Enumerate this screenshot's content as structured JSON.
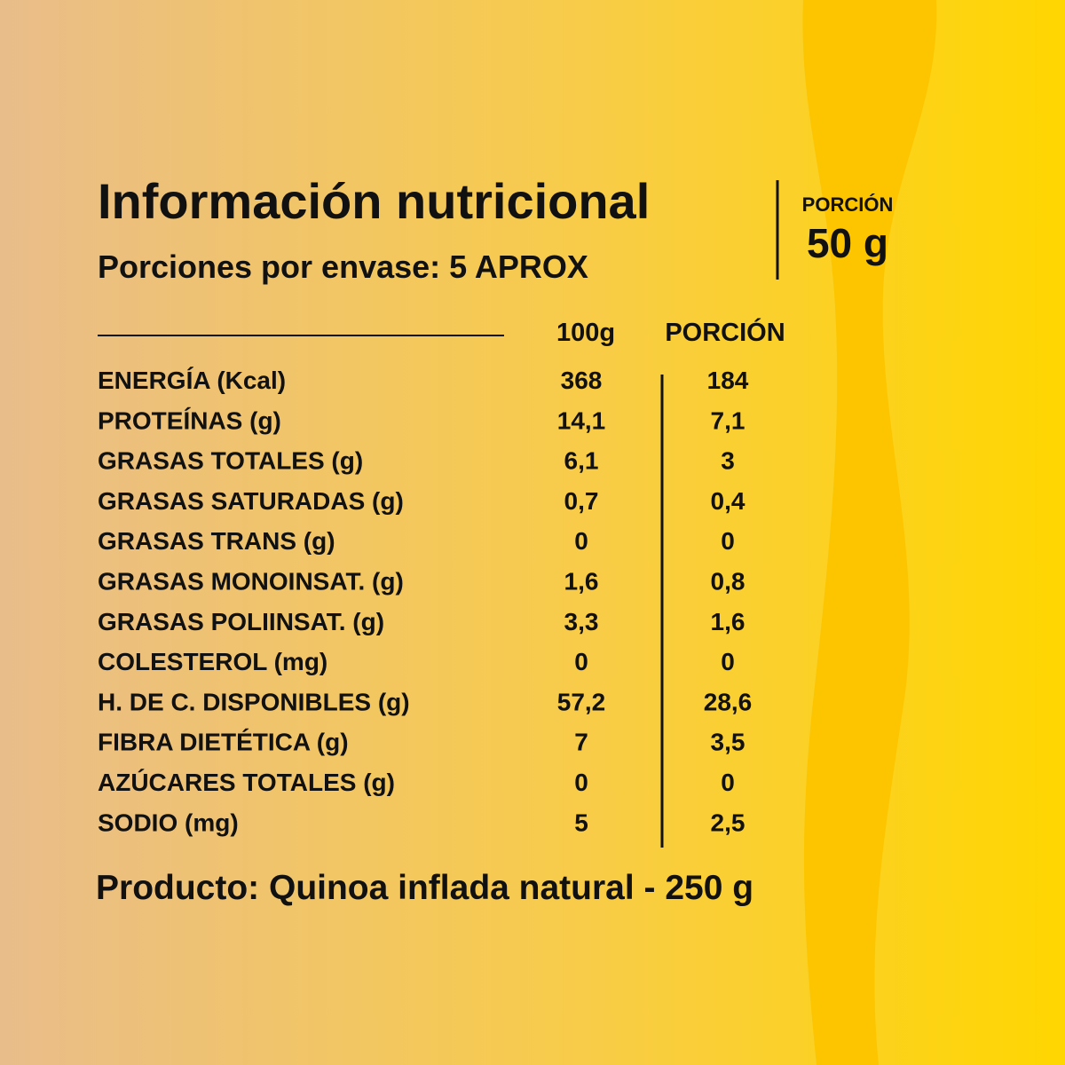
{
  "header": {
    "title": "Información nutricional",
    "subtitle": "Porciones por envase: 5 APROX"
  },
  "portion": {
    "label": "PORCIÓN",
    "value": "50 g"
  },
  "table": {
    "columns": [
      "100g",
      "PORCIÓN"
    ],
    "rows": [
      [
        "ENERGÍA (Kcal)",
        "368",
        "184"
      ],
      [
        "PROTEÍNAS (g)",
        "14,1",
        "7,1"
      ],
      [
        "GRASAS TOTALES (g)",
        "6,1",
        "3"
      ],
      [
        "GRASAS SATURADAS (g)",
        "0,7",
        "0,4"
      ],
      [
        "GRASAS TRANS (g)",
        "0",
        "0"
      ],
      [
        "GRASAS MONOINSAT. (g)",
        "1,6",
        "0,8"
      ],
      [
        "GRASAS POLIINSAT. (g)",
        "3,3",
        "1,6"
      ],
      [
        "COLESTEROL (mg)",
        "0",
        "0"
      ],
      [
        "H. DE C. DISPONIBLES (g)",
        "57,2",
        "28,6"
      ],
      [
        "FIBRA DIETÉTICA (g)",
        "7",
        "3,5"
      ],
      [
        "AZÚCARES TOTALES (g)",
        "0",
        "0"
      ],
      [
        "SODIO (mg)",
        "5",
        "2,5"
      ]
    ]
  },
  "footer": "Producto: Quinoa inflada natural - 250 g"
}
